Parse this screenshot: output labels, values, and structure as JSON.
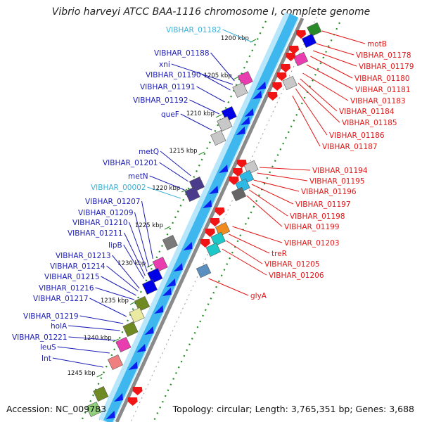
{
  "title": "Vibrio harveyi ATCC BAA-1116 chromosome I, complete genome",
  "footer": {
    "accession": "Accession: NC_009783",
    "topology": "Topology: circular; Length: 3,765,351 bp; Genes: 3,688"
  },
  "colors": {
    "backbone": "#3eb6ee",
    "backbone_light": "#b8e6fa",
    "backbone_shadow": "#8a8a8a",
    "left_label": "#1c1cb4",
    "left_label_alt": "#3ab0d8",
    "right_label": "#e01616",
    "tick": "#2a7a18"
  },
  "kbp_ticks": [
    {
      "label": "1200 kbp"
    },
    {
      "label": "1205 kbp"
    },
    {
      "label": "1210 kbp"
    },
    {
      "label": "1215 kbp"
    },
    {
      "label": "1220 kbp"
    },
    {
      "label": "1225 kbp"
    },
    {
      "label": "1230 kbp"
    },
    {
      "label": "1235 kbp"
    },
    {
      "label": "1240 kbp"
    },
    {
      "label": "1245 kbp"
    }
  ],
  "left_genes": [
    {
      "label": "VIBHAR_01182",
      "kind": "alt"
    },
    {
      "label": "VIBHAR_01188"
    },
    {
      "label": "xni"
    },
    {
      "label": "VIBHAR_01190"
    },
    {
      "label": "VIBHAR_01191"
    },
    {
      "label": "VIBHAR_01192"
    },
    {
      "label": "queF"
    },
    {
      "label": "metQ"
    },
    {
      "label": "VIBHAR_01201"
    },
    {
      "label": "metN"
    },
    {
      "label": "VIBHAR_00002",
      "kind": "alt"
    },
    {
      "label": "VIBHAR_01207"
    },
    {
      "label": "VIBHAR_01209"
    },
    {
      "label": "VIBHAR_01210"
    },
    {
      "label": "VIBHAR_01211"
    },
    {
      "label": "lipB"
    },
    {
      "label": "VIBHAR_01213"
    },
    {
      "label": "VIBHAR_01214"
    },
    {
      "label": "VIBHAR_01215"
    },
    {
      "label": "VIBHAR_01216"
    },
    {
      "label": "VIBHAR_01217"
    },
    {
      "label": "VIBHAR_01219"
    },
    {
      "label": "holA"
    },
    {
      "label": "VIBHAR_01221"
    },
    {
      "label": "leuS"
    },
    {
      "label": "Int"
    }
  ],
  "right_genes": [
    {
      "label": "motB"
    },
    {
      "label": "VIBHAR_01178"
    },
    {
      "label": "VIBHAR_01179"
    },
    {
      "label": "VIBHAR_01180"
    },
    {
      "label": "VIBHAR_01181"
    },
    {
      "label": "VIBHAR_01183"
    },
    {
      "label": "VIBHAR_01184"
    },
    {
      "label": "VIBHAR_01185"
    },
    {
      "label": "VIBHAR_01186"
    },
    {
      "label": "VIBHAR_01187"
    },
    {
      "label": "VIBHAR_01194"
    },
    {
      "label": "VIBHAR_01195"
    },
    {
      "label": "VIBHAR_01196"
    },
    {
      "label": "VIBHAR_01197"
    },
    {
      "label": "VIBHAR_01198"
    },
    {
      "label": "VIBHAR_01199"
    },
    {
      "label": "VIBHAR_01203"
    },
    {
      "label": "treR"
    },
    {
      "label": "VIBHAR_01205"
    },
    {
      "label": "VIBHAR_01206"
    },
    {
      "label": "glyA"
    }
  ]
}
